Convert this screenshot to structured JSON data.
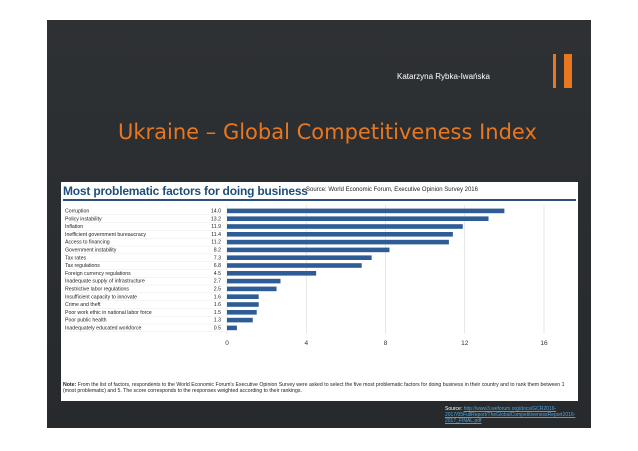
{
  "slide": {
    "author": "Katarzyna Rybka-Iwańska",
    "title": "Ukraine – Global Competitiveness Index",
    "source_label": "Source:",
    "source_url": "http://www3.weforum.org/docs/GCR2016-2017/05FullReport/TheGlobalCompetitivenessReport2016-2017_FINAL.pdf"
  },
  "figure": {
    "heading": "Most problematic factors for doing business",
    "source": "Source: World Economic Forum, Executive Opinion Survey 2016",
    "note_label": "Note:",
    "note_text": "From the list of factors, respondents to the World Economic Forum's Executive Opinion Survey were asked to select the five most problematic factors for doing business in their country and to rank them between 1 (most problematic) and 5. The score corresponds to the responses weighted according to their rankings."
  },
  "chart_data": {
    "type": "bar",
    "orientation": "horizontal",
    "title": "Most problematic factors for doing business",
    "categories": [
      "Corruption",
      "Policy instability",
      "Inflation",
      "Inefficient government bureaucracy",
      "Access to financing",
      "Government instability",
      "Tax rates",
      "Tax regulations",
      "Foreign currency regulations",
      "Inadequate supply of infrastructure",
      "Restrictive labor regulations",
      "Insufficient capacity to innovate",
      "Crime and theft",
      "Poor work ethic in national labor force",
      "Poor public health",
      "Inadequately educated workforce"
    ],
    "value_labels": [
      "14.0",
      "13.2",
      "11.9",
      "11.4",
      "11.2",
      "8.2",
      "7.3",
      "6.8",
      "4.5",
      "2.7",
      "2.5",
      "1.6",
      "1.6",
      "1.5",
      "1.3",
      "0.5"
    ],
    "values": [
      14.0,
      13.2,
      11.9,
      11.4,
      11.2,
      8.2,
      7.3,
      6.8,
      4.5,
      2.7,
      2.5,
      1.6,
      1.6,
      1.5,
      1.3,
      0.5
    ],
    "xlim": [
      0,
      16
    ],
    "xticks": [
      "0",
      "4",
      "8",
      "12",
      "16"
    ],
    "grid": true,
    "color": "#2e5c96",
    "xlabel": "",
    "ylabel": ""
  }
}
